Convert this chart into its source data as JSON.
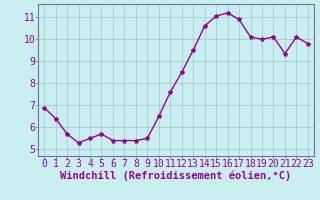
{
  "x": [
    0,
    1,
    2,
    3,
    4,
    5,
    6,
    7,
    8,
    9,
    10,
    11,
    12,
    13,
    14,
    15,
    16,
    17,
    18,
    19,
    20,
    21,
    22,
    23
  ],
  "y": [
    6.9,
    6.4,
    5.7,
    5.3,
    5.5,
    5.7,
    5.4,
    5.4,
    5.4,
    5.5,
    6.5,
    7.6,
    8.5,
    9.5,
    10.6,
    11.05,
    11.2,
    10.9,
    10.1,
    10.0,
    10.1,
    9.35,
    10.1,
    9.8
  ],
  "line_color": "#990099",
  "marker": "*",
  "marker_size": 3,
  "bg_color": "#c8eef0",
  "grid_color": "#a0d0cc",
  "spine_color": "#7070a0",
  "tick_color": "#990099",
  "xlabel": "Windchill (Refroidissement éolien,°C)",
  "xlabel_color": "#990099",
  "ylim": [
    4.7,
    11.6
  ],
  "xlim": [
    -0.5,
    23.5
  ],
  "yticks": [
    5,
    6,
    7,
    8,
    9,
    10,
    11
  ],
  "xticks": [
    0,
    1,
    2,
    3,
    4,
    5,
    6,
    7,
    8,
    9,
    10,
    11,
    12,
    13,
    14,
    15,
    16,
    17,
    18,
    19,
    20,
    21,
    22,
    23
  ],
  "xlabel_fontsize": 7.5,
  "tick_fontsize": 7,
  "line_width": 1.0
}
